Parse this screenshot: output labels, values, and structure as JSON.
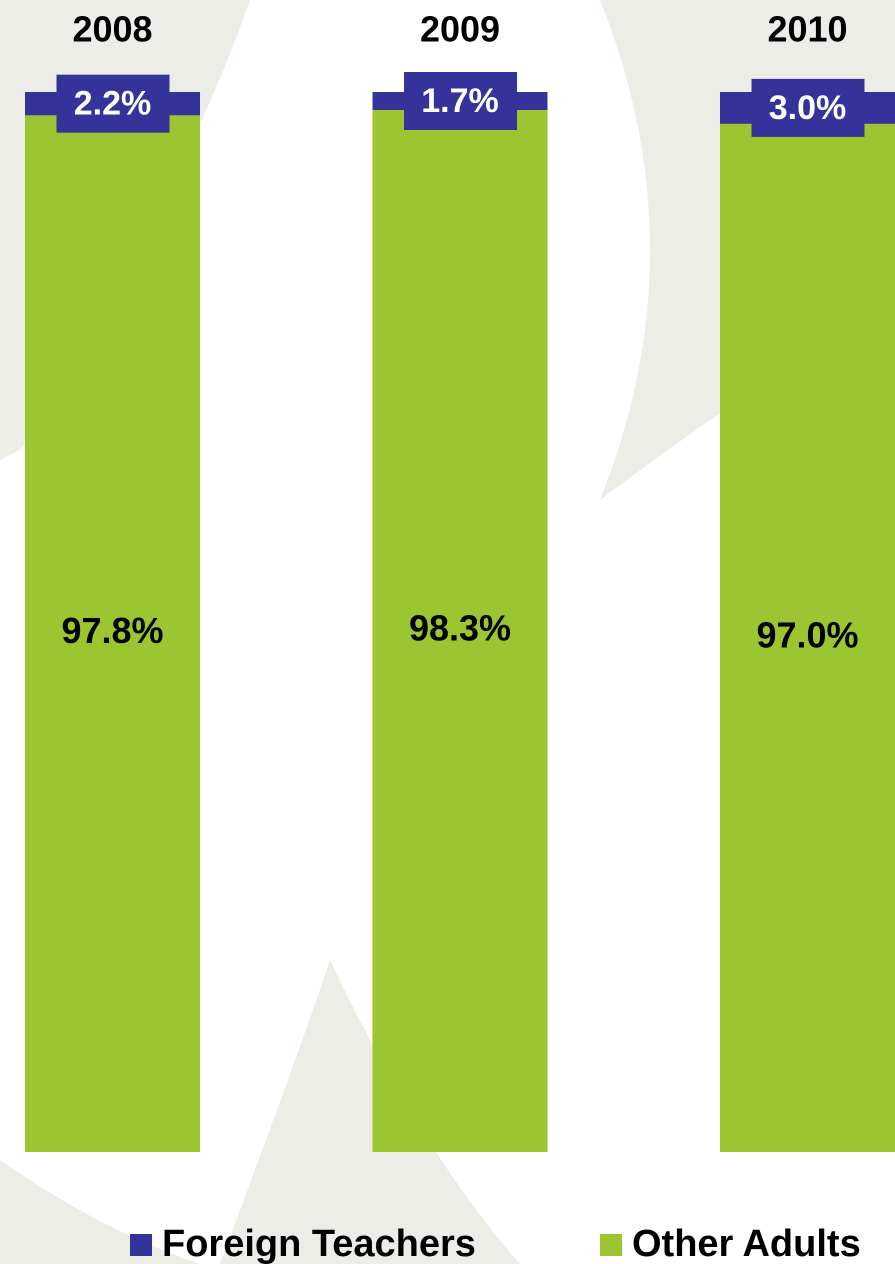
{
  "chart_data": {
    "type": "stacked_bar",
    "categories": [
      "2008",
      "2009",
      "2010"
    ],
    "series": [
      {
        "name": "Foreign Teachers",
        "color": "#33339a",
        "values": [
          2.2,
          1.7,
          3.0
        ],
        "value_labels": [
          "2.2%",
          "1.7%",
          "3.0%"
        ]
      },
      {
        "name": "Other Adults",
        "color": "#9bc531",
        "values": [
          97.8,
          98.3,
          97.0
        ],
        "value_labels": [
          "97.8%",
          "98.3%",
          "97.0%"
        ]
      }
    ],
    "ylim": [
      0,
      100
    ]
  }
}
